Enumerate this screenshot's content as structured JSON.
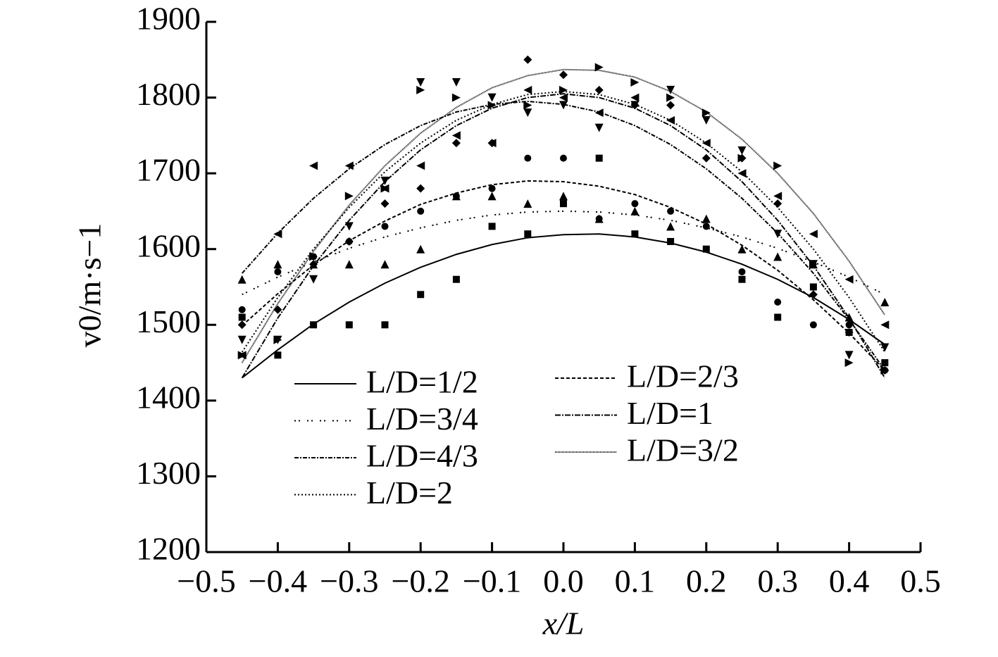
{
  "chart_data": {
    "type": "scatter",
    "xlabel": "x/L",
    "ylabel": "v0/m·s−1",
    "x": [
      -0.45,
      -0.4,
      -0.35,
      -0.3,
      -0.25,
      -0.2,
      -0.15,
      -0.1,
      -0.05,
      0,
      0.05,
      0.1,
      0.15,
      0.2,
      0.25,
      0.3,
      0.35,
      0.4,
      0.45
    ],
    "xlim": [
      -0.5,
      0.5
    ],
    "xticks": [
      {
        "value": -0.5,
        "label": "−0.5"
      },
      {
        "value": -0.4,
        "label": "−0.4"
      },
      {
        "value": -0.3,
        "label": "−0.3"
      },
      {
        "value": -0.2,
        "label": "−0.2"
      },
      {
        "value": -0.1,
        "label": "−0.1"
      },
      {
        "value": 0,
        "label": "0.0"
      },
      0.1,
      0.2,
      0.3,
      0.4,
      0.5
    ],
    "ylim": [
      1200,
      1900
    ],
    "yticks": [
      1200,
      1300,
      1400,
      1500,
      1600,
      1700,
      1800,
      1900
    ],
    "series": [
      {
        "name": "L/D=1/2",
        "color": "#000000",
        "dash": "",
        "marker": "square",
        "values": [
          1510,
          1460,
          1500,
          1500,
          1500,
          1540,
          1560,
          1630,
          1620,
          1660,
          1720,
          1620,
          1610,
          1600,
          1560,
          1510,
          1550,
          1490,
          1450
        ],
        "fit": [
          1430,
          1467,
          1501,
          1530,
          1555,
          1576,
          1593,
          1606,
          1615,
          1619,
          1620,
          1616,
          1608,
          1596,
          1580,
          1560,
          1536,
          1507,
          1474
        ]
      },
      {
        "name": "L/D=3/4",
        "color": "#000000",
        "dash": "2 4 2 10",
        "marker": "triangle-up",
        "values": [
          1560,
          1580,
          1580,
          1580,
          1580,
          1600,
          1670,
          1670,
          1660,
          1670,
          1640,
          1650,
          1630,
          1640,
          1600,
          1590,
          1580,
          1510,
          1530
        ],
        "fit": [
          1540,
          1563,
          1583,
          1601,
          1616,
          1628,
          1638,
          1645,
          1649,
          1650,
          1649,
          1645,
          1638,
          1628,
          1616,
          1601,
          1583,
          1563,
          1540
        ]
      },
      {
        "name": "L/D=4/3",
        "color": "#000000",
        "dash": "6 2 2 2",
        "marker": "triangle-left",
        "values": [
          1460,
          1620,
          1710,
          1710,
          1680,
          1710,
          1750,
          1740,
          1810,
          1800,
          1780,
          1800,
          1770,
          1740,
          1700,
          1670,
          1620,
          1560,
          1500
        ],
        "fit": [
          1568,
          1621,
          1667,
          1706,
          1738,
          1763,
          1781,
          1791,
          1795,
          1791,
          1781,
          1763,
          1738,
          1706,
          1667,
          1621,
          1568,
          1507,
          1440
        ]
      },
      {
        "name": "L/D=2",
        "color": "#000000",
        "dash": "2 3",
        "marker": "triangle-right",
        "values": [
          1460,
          1480,
          1590,
          1670,
          1680,
          1810,
          1800,
          1790,
          1790,
          1810,
          1840,
          1820,
          1800,
          1780,
          1720,
          1710,
          1580,
          1450,
          1440
        ],
        "fit": [
          1464,
          1536,
          1600,
          1655,
          1702,
          1740,
          1770,
          1791,
          1804,
          1808,
          1804,
          1791,
          1770,
          1740,
          1702,
          1655,
          1600,
          1536,
          1464
        ]
      },
      {
        "name": "L/D=2/3",
        "color": "#000000",
        "dash": "5 3",
        "marker": "circle",
        "values": [
          1520,
          1570,
          1590,
          1610,
          1630,
          1650,
          1670,
          1680,
          1720,
          1720,
          1640,
          1660,
          1650,
          1630,
          1570,
          1530,
          1500,
          1500,
          1440
        ],
        "fit": [
          1499,
          1541,
          1579,
          1611,
          1637,
          1659,
          1674,
          1685,
          1690,
          1689,
          1683,
          1672,
          1655,
          1633,
          1605,
          1572,
          1533,
          1489,
          1440
        ]
      },
      {
        "name": "L/D=1",
        "color": "#000000",
        "dash": "8 2 2 2",
        "marker": "diamond",
        "values": [
          1500,
          1520,
          1580,
          1610,
          1660,
          1680,
          1740,
          1740,
          1850,
          1830,
          1810,
          1790,
          1790,
          1720,
          1720,
          1660,
          1540,
          1490,
          1440
        ],
        "fit": [
          1430,
          1509,
          1578,
          1638,
          1689,
          1731,
          1763,
          1786,
          1800,
          1805,
          1800,
          1786,
          1763,
          1731,
          1689,
          1638,
          1578,
          1509,
          1430
        ]
      },
      {
        "name": "L/D=3/2",
        "color": "#000000",
        "dash": "1 1",
        "marker": "triangle-down",
        "values": [
          1480,
          1480,
          1560,
          1630,
          1690,
          1820,
          1820,
          1800,
          1780,
          1790,
          1760,
          1790,
          1810,
          1770,
          1730,
          1620,
          1580,
          1460,
          1470
        ],
        "fit": [
          1450,
          1528,
          1597,
          1658,
          1710,
          1753,
          1787,
          1813,
          1829,
          1837,
          1836,
          1827,
          1808,
          1781,
          1745,
          1700,
          1647,
          1584,
          1513
        ]
      }
    ]
  }
}
